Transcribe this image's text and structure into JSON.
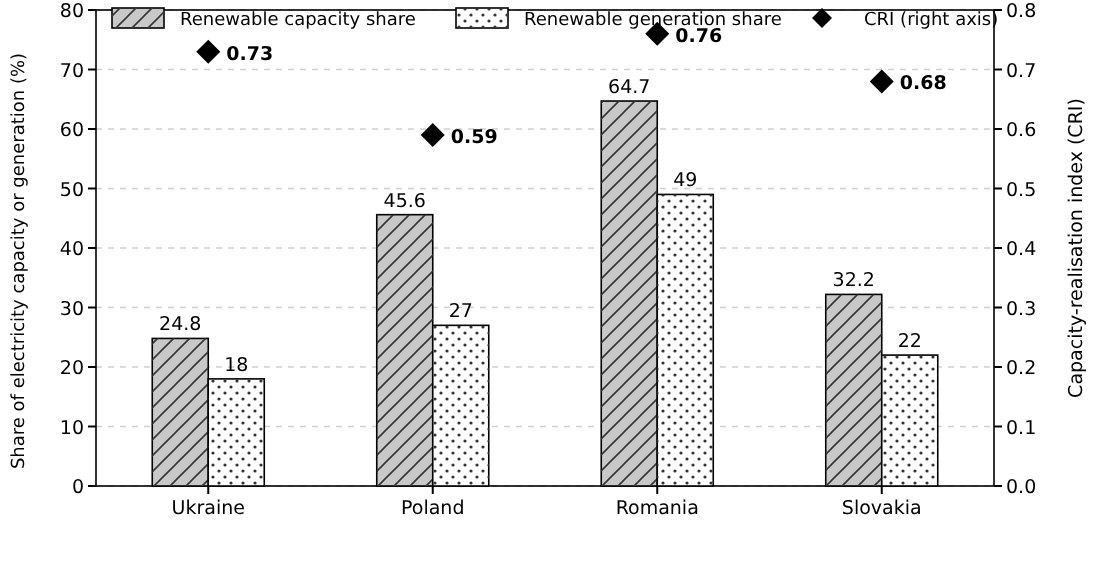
{
  "chart_data": {
    "type": "bar",
    "categories": [
      "Ukraine",
      "Poland",
      "Romania",
      "Slovakia"
    ],
    "ylabel": "Share of electricity capacity or generation (%)",
    "y2label": "Capacity-realisation index (CRI)",
    "series": [
      {
        "name": "Renewable capacity share",
        "color": "#c8c8c8",
        "values": [
          24.8,
          45.6,
          64.7,
          32.2
        ]
      },
      {
        "name": "Renewable generation share",
        "color": "#ffffff",
        "values": [
          18,
          27,
          49,
          22
        ]
      },
      {
        "name": "CRI (right axis)",
        "type": "scatter",
        "axis": "y2",
        "color": "#000000",
        "marker": "diamond",
        "values": [
          0.73,
          0.59,
          0.76,
          0.68
        ]
      }
    ],
    "ylim": [
      0,
      80
    ],
    "yticks": [
      0,
      10,
      20,
      30,
      40,
      50,
      60,
      70,
      80
    ],
    "y2lim": [
      0,
      0.8
    ],
    "y2ticks": [
      {
        "value": 0,
        "label": "0.0"
      },
      0.1,
      0.2,
      0.3,
      0.4,
      0.5,
      0.6,
      0.7,
      0.8
    ],
    "grid": "y",
    "legend": "top",
    "data_labels": true
  }
}
